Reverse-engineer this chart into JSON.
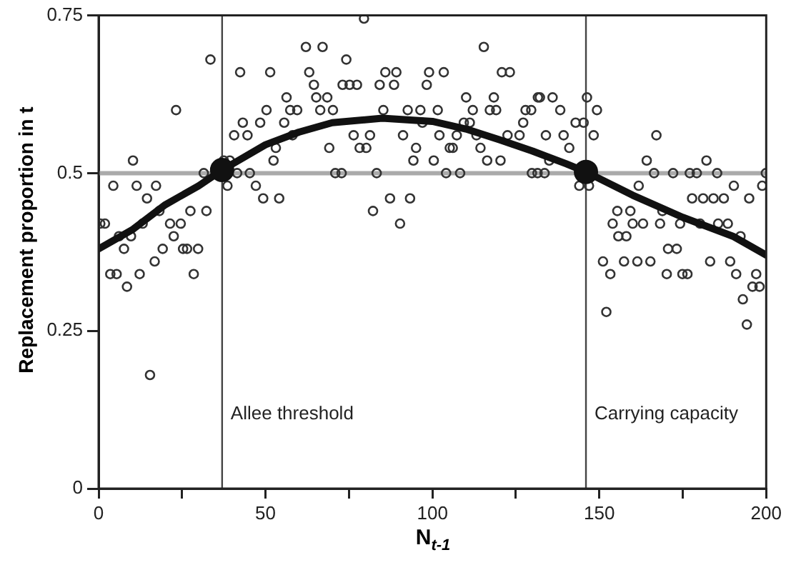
{
  "chart_data": {
    "type": "scatter",
    "xlabel": "N$_{t-1}$",
    "ylabel": "Replacement proportion in t",
    "xlim": [
      0,
      200
    ],
    "ylim": [
      0,
      0.75
    ],
    "xticks": [
      0,
      {
        "value": 25,
        "label": null
      },
      50,
      {
        "value": 75,
        "label": null
      },
      100,
      {
        "value": 125,
        "label": null
      },
      150,
      {
        "value": 175,
        "label": null
      },
      200
    ],
    "yticks": [
      0,
      0.25,
      0.5,
      0.75
    ],
    "grid": false,
    "legend": false,
    "ref_lines": [
      {
        "axis": "y",
        "value": 0.5,
        "label": null,
        "color": "#aaaaaa"
      },
      {
        "axis": "x",
        "value": 37,
        "label": "Allee threshold",
        "color": "#444444"
      },
      {
        "axis": "x",
        "value": 146,
        "label": "Carrying capacity",
        "color": "#444444"
      }
    ],
    "series": [
      {
        "type": "scatter",
        "marker": "circle",
        "color": "#333333",
        "x": [
          62.1,
          33.5,
          42.4,
          51.4,
          63.1,
          23.2,
          56.3,
          50.3,
          57.4,
          59.5,
          43.2,
          48.4,
          55.6,
          40.6,
          44.6,
          58.1,
          53.1,
          10.3,
          37.5,
          39.3,
          52.4,
          31.5,
          41.5,
          45.3,
          4.4,
          11.4,
          17.2,
          38.6,
          47.1,
          14.5,
          49.3,
          54.1,
          18.2,
          27.5,
          32.3,
          1.9,
          0.5,
          13.2,
          21.4,
          24.6,
          22.5,
          6.1,
          9.7,
          7.6,
          19.2,
          25.3,
          26.5,
          29.8,
          16.8,
          3.5,
          5.4,
          12.3,
          28.5,
          8.5,
          15.4,
          79.5,
          67.1,
          115.4,
          74.2,
          85.9,
          89.2,
          99.0,
          103.4,
          120.8,
          123.2,
          64.5,
          73.1,
          75.2,
          77.4,
          84.2,
          88.5,
          98.3,
          65.2,
          68.5,
          110.1,
          118.4,
          66.4,
          70.2,
          85.3,
          92.6,
          96.4,
          101.6,
          112.1,
          117.2,
          119.1,
          127.9,
          129.6,
          131.6,
          97.0,
          109.4,
          111.2,
          127.2,
          76.4,
          81.3,
          91.2,
          102.1,
          107.3,
          113.2,
          122.5,
          126.1,
          69.1,
          78.2,
          80.2,
          95.1,
          105.2,
          106.1,
          114.4,
          94.3,
          100.4,
          116.4,
          120.4,
          70.9,
          72.8,
          83.3,
          104.1,
          108.3,
          129.8,
          131.5,
          87.3,
          93.3,
          82.2,
          90.3,
          132.2,
          136.0,
          146.3,
          138.3,
          149.3,
          142.9,
          145.3,
          134.0,
          139.3,
          148.3,
          167.1,
          141.0,
          135.0,
          164.2,
          182.1,
          133.6,
          166.4,
          172.1,
          177.1,
          179.2,
          185.3,
          199.9,
          144.0,
          146.9,
          161.8,
          190.3,
          198.8,
          177.8,
          181.1,
          184.2,
          187.3,
          194.9,
          155.4,
          159.3,
          168.9,
          154.0,
          160.0,
          163.1,
          168.2,
          174.2,
          180.2,
          185.6,
          188.5,
          155.7,
          158.1,
          192.3,
          170.6,
          173.2,
          151.1,
          157.4,
          161.4,
          165.3,
          183.2,
          189.2,
          153.3,
          170.2,
          174.9,
          176.4,
          191.0,
          197.0,
          195.9,
          198.0,
          193.0,
          152.1,
          194.2
        ],
        "values": [
          0.7,
          0.68,
          0.66,
          0.66,
          0.66,
          0.6,
          0.62,
          0.6,
          0.6,
          0.6,
          0.58,
          0.58,
          0.58,
          0.56,
          0.56,
          0.56,
          0.54,
          0.52,
          0.52,
          0.52,
          0.52,
          0.5,
          0.5,
          0.5,
          0.48,
          0.48,
          0.48,
          0.48,
          0.48,
          0.46,
          0.46,
          0.46,
          0.44,
          0.44,
          0.44,
          0.42,
          0.42,
          0.42,
          0.42,
          0.42,
          0.4,
          0.4,
          0.4,
          0.38,
          0.38,
          0.38,
          0.38,
          0.38,
          0.36,
          0.34,
          0.34,
          0.34,
          0.34,
          0.32,
          0.18,
          0.745,
          0.7,
          0.7,
          0.68,
          0.66,
          0.66,
          0.66,
          0.66,
          0.66,
          0.66,
          0.64,
          0.64,
          0.64,
          0.64,
          0.64,
          0.64,
          0.64,
          0.62,
          0.62,
          0.62,
          0.62,
          0.6,
          0.6,
          0.6,
          0.6,
          0.6,
          0.6,
          0.6,
          0.6,
          0.6,
          0.6,
          0.6,
          0.62,
          0.58,
          0.58,
          0.58,
          0.58,
          0.56,
          0.56,
          0.56,
          0.56,
          0.56,
          0.56,
          0.56,
          0.56,
          0.54,
          0.54,
          0.54,
          0.54,
          0.54,
          0.54,
          0.54,
          0.52,
          0.52,
          0.52,
          0.52,
          0.5,
          0.5,
          0.5,
          0.5,
          0.5,
          0.5,
          0.5,
          0.46,
          0.46,
          0.44,
          0.42,
          0.62,
          0.62,
          0.62,
          0.6,
          0.6,
          0.58,
          0.58,
          0.56,
          0.56,
          0.56,
          0.56,
          0.54,
          0.52,
          0.52,
          0.52,
          0.5,
          0.5,
          0.5,
          0.5,
          0.5,
          0.5,
          0.5,
          0.48,
          0.48,
          0.48,
          0.48,
          0.48,
          0.46,
          0.46,
          0.46,
          0.46,
          0.46,
          0.44,
          0.44,
          0.44,
          0.42,
          0.42,
          0.42,
          0.42,
          0.42,
          0.42,
          0.42,
          0.42,
          0.4,
          0.4,
          0.4,
          0.38,
          0.38,
          0.36,
          0.36,
          0.36,
          0.36,
          0.36,
          0.36,
          0.34,
          0.34,
          0.34,
          0.34,
          0.34,
          0.34,
          0.32,
          0.32,
          0.3,
          0.28,
          0.26
        ]
      },
      {
        "type": "line",
        "marker": "none",
        "color": "#111111",
        "x": [
          0,
          10,
          20,
          30,
          37,
          50,
          60,
          70,
          85,
          100,
          110,
          120,
          130,
          140,
          146,
          160,
          175,
          190,
          200
        ],
        "values": [
          0.38,
          0.41,
          0.45,
          0.48,
          0.505,
          0.545,
          0.565,
          0.58,
          0.587,
          0.582,
          0.57,
          0.553,
          0.535,
          0.515,
          0.502,
          0.465,
          0.43,
          0.4,
          0.37
        ]
      },
      {
        "type": "scatter",
        "marker": "circle",
        "color": "#111111",
        "x": [
          37,
          146
        ],
        "values": [
          0.505,
          0.502
        ]
      }
    ]
  }
}
